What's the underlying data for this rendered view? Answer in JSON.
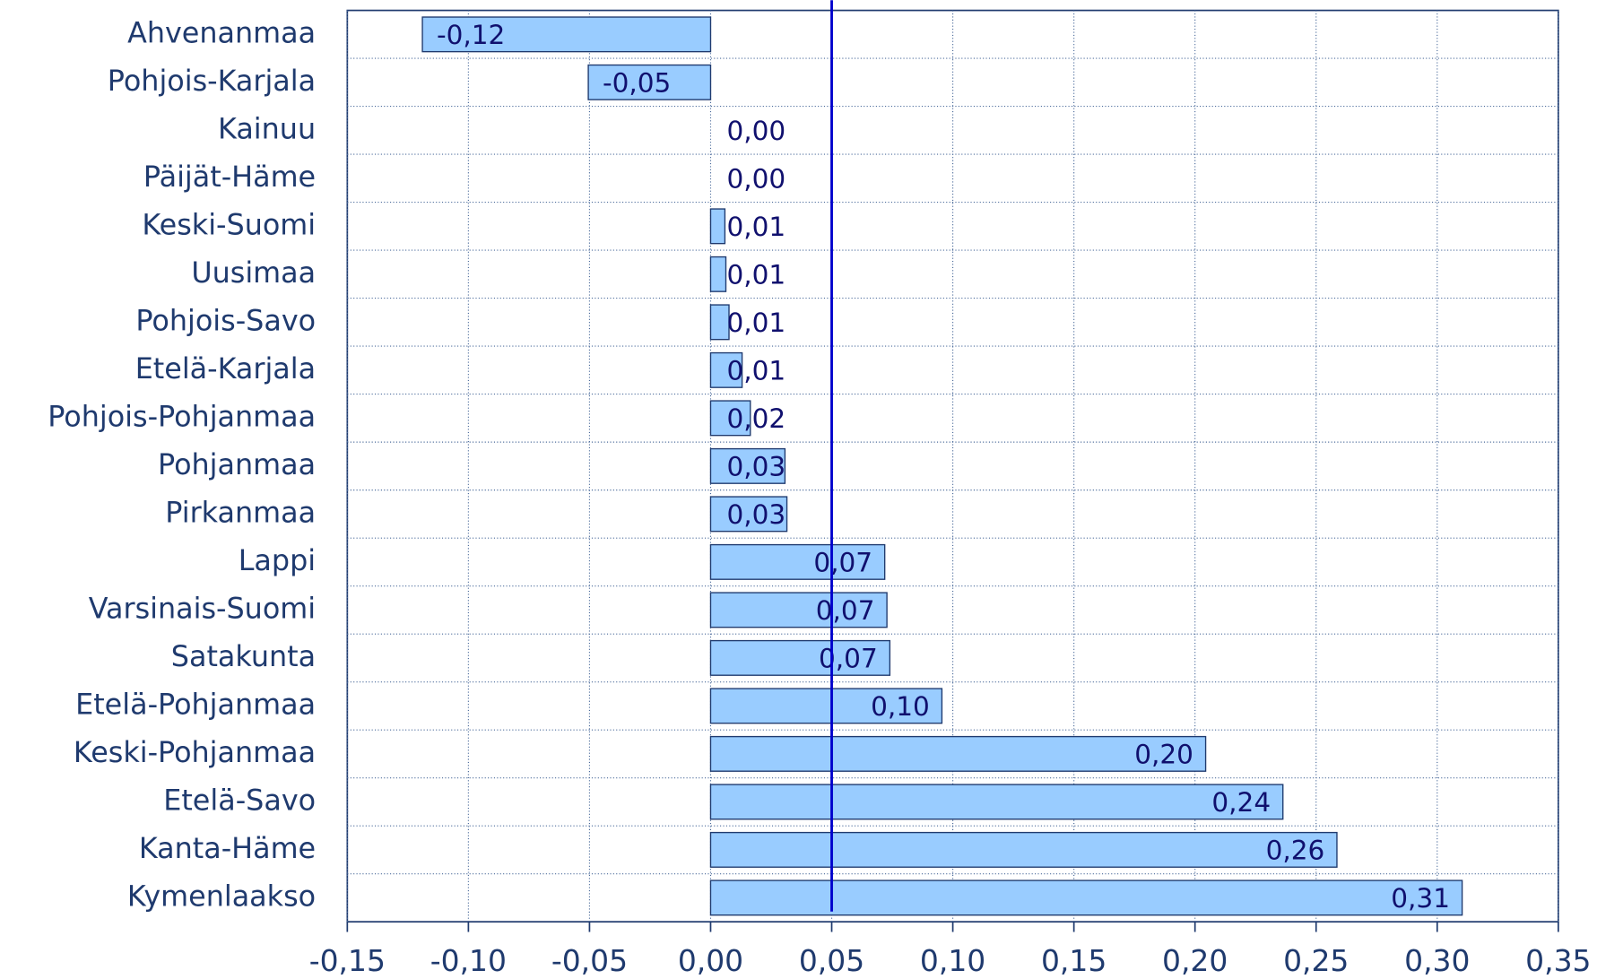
{
  "chart_data": {
    "type": "barh",
    "categories": [
      "Ahvenanmaa",
      "Pohjois-Karjala",
      "Kainuu",
      "Päijät-Häme",
      "Keski-Suomi",
      "Uusimaa",
      "Pohjois-Savo",
      "Etelä-Karjala",
      "Pohjois-Pohjanmaa",
      "Pohjanmaa",
      "Pirkanmaa",
      "Lappi",
      "Varsinais-Suomi",
      "Satakunta",
      "Etelä-Pohjanmaa",
      "Keski-Pohjanmaa",
      "Etelä-Savo",
      "Kanta-Häme",
      "Kymenlaakso"
    ],
    "values": [
      -0.119,
      -0.0505,
      0,
      0,
      0.0059,
      0.0063,
      0.0076,
      0.013,
      0.0164,
      0.0307,
      0.0315,
      0.0719,
      0.0728,
      0.074,
      0.0955,
      0.2044,
      0.2363,
      0.2586,
      0.3103
    ],
    "value_labels": [
      "-0,12",
      "-0,05",
      "0,00",
      "0,00",
      "0,01",
      "0,01",
      "0,01",
      "0,01",
      "0,02",
      "0,03",
      "0,03",
      "0,07",
      "0,07",
      "0,07",
      "0,10",
      "0,20",
      "0,24",
      "0,26",
      "0,31"
    ],
    "color": "#99ccff",
    "xlim": [
      -0.15,
      0.35
    ],
    "xticks": [
      {
        "value": -0.15,
        "label": "-0,15"
      },
      {
        "value": -0.1,
        "label": "-0,10"
      },
      {
        "value": -0.05,
        "label": "-0,05"
      },
      {
        "value": 0,
        "label": "0,00"
      },
      {
        "value": 0.05,
        "label": "0,05"
      },
      {
        "value": 0.1,
        "label": "0,10"
      },
      {
        "value": 0.15,
        "label": "0,15"
      },
      {
        "value": 0.2,
        "label": "0,20"
      },
      {
        "value": 0.25,
        "label": "0,25"
      },
      {
        "value": 0.3,
        "label": "0,30"
      },
      {
        "value": 0.35,
        "label": "0,35"
      }
    ],
    "reference_line": 0.05,
    "grid": true
  }
}
